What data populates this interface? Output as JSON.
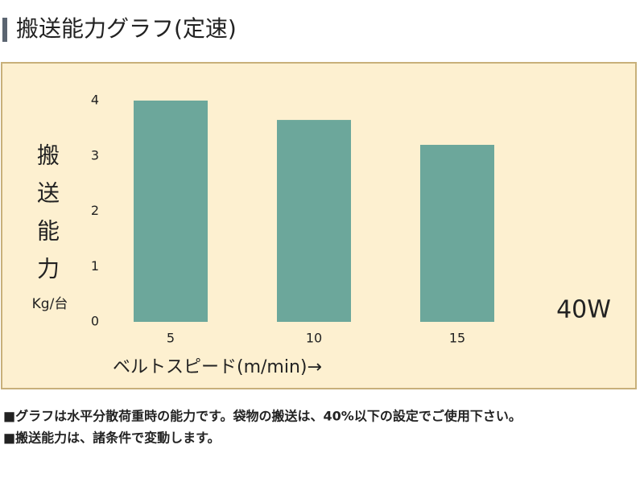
{
  "chart_data": {
    "type": "bar",
    "title": "搬送能力グラフ(定速)",
    "y_label": "搬送能力",
    "y_unit": "Kg/台",
    "x_label": "ベルトスピード(m/min)→",
    "annotation": "40W",
    "categories": [
      "5",
      "10",
      "15"
    ],
    "values": [
      4.0,
      3.65,
      3.2
    ],
    "color": "#6ca79b",
    "ylim": [
      0,
      4
    ],
    "yticks": [
      0,
      1,
      2,
      3,
      4
    ],
    "grid": false,
    "notes": [
      "■グラフは水平分散荷重時の能力です。袋物の搬送は、40%以下の設定でご使用下さい。",
      "■搬送能力は、諸条件で変動します。"
    ]
  }
}
